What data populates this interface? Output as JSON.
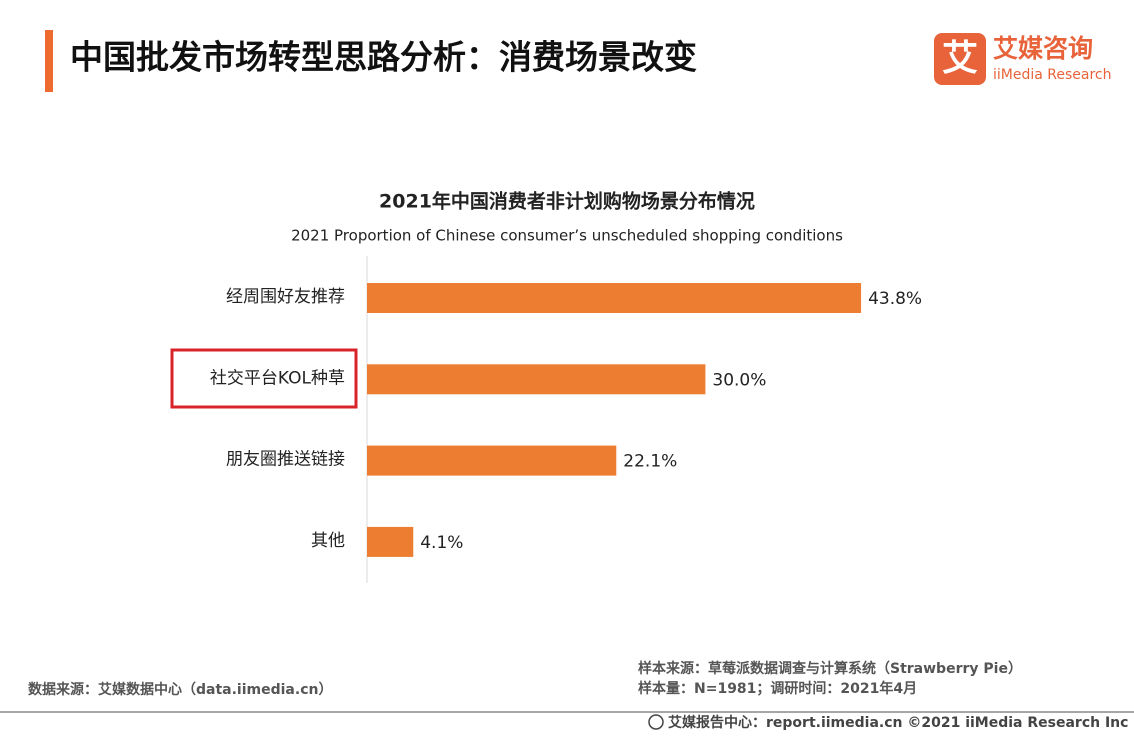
{
  "header": {
    "title": "中国批发市场转型思路分析：消费场景改变",
    "logo_mark": "艾",
    "logo_name": "艾媒咨询",
    "logo_en": "iiMedia Research"
  },
  "chart_data": {
    "type": "bar",
    "orientation": "horizontal",
    "title": "2021年中国消费者非计划购物场景分布情况",
    "subtitle": "2021 Proportion of Chinese consumer’s unscheduled shopping conditions",
    "categories": [
      "经周围好友推荐",
      "社交平台KOL种草",
      "朋友圈推送链接",
      "其他"
    ],
    "values": [
      43.8,
      30.0,
      22.1,
      4.1
    ],
    "value_labels": [
      "43.8%",
      "30.0%",
      "22.1%",
      "4.1%"
    ],
    "color": "#ed7d31"
  },
  "footer": {
    "data_source": "数据来源：艾媒数据中心（data.iimedia.cn）",
    "sample_source": "样本来源：草莓派数据调查与计算系统（Strawberry Pie）",
    "sample_size": "样本量：N=1981；调研时间：2021年4月",
    "report_center": "艾媒报告中心：report.iimedia.cn  ©2021  iiMedia Research  Inc"
  }
}
